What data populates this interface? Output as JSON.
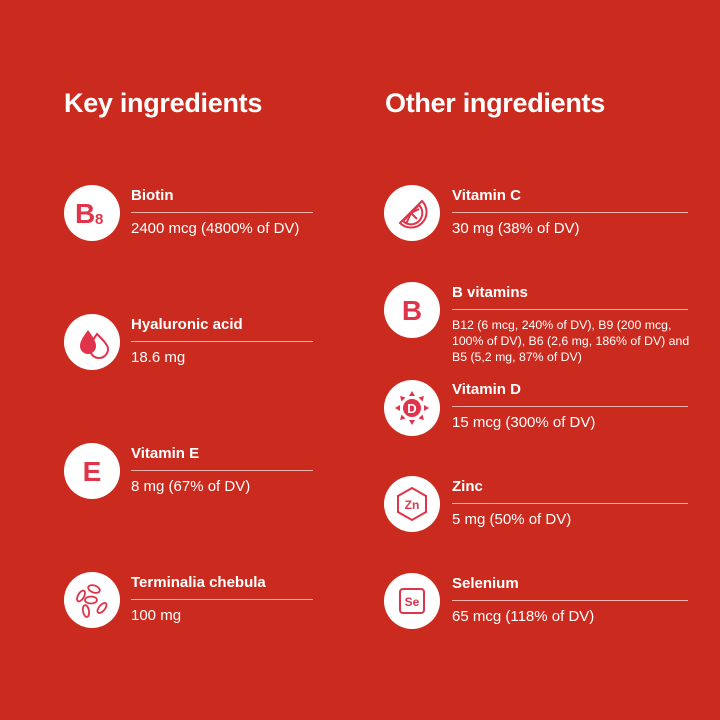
{
  "headings": {
    "key": "Key ingredients",
    "other": "Other ingredients"
  },
  "colors": {
    "background": "#cb2b1e",
    "icon": "#e0344a",
    "text": "#ffffff"
  },
  "key_ingredients": [
    {
      "name": "Biotin",
      "value": "2400 mcg (4800% of DV)",
      "icon": "b8-icon",
      "icon_text": "B",
      "icon_sub": "8"
    },
    {
      "name": "Hyaluronic acid",
      "value": "18.6 mg",
      "icon": "droplets-icon"
    },
    {
      "name": "Vitamin E",
      "value": "8 mg (67% of DV)",
      "icon": "e-letter-icon",
      "icon_text": "E"
    },
    {
      "name": "Terminalia chebula",
      "value": "100 mg",
      "icon": "seeds-icon"
    }
  ],
  "other_ingredients": [
    {
      "name": "Vitamin C",
      "value": "30 mg (38% of DV)",
      "icon": "citrus-slice-icon"
    },
    {
      "name": "B vitamins",
      "value": "B12 (6 mcg, 240% of DV), B9 (200 mcg, 100% of DV), B6 (2,6 mg, 186% of DV) and B5 (5,2 mg, 87% of DV)",
      "icon": "b-letter-icon",
      "icon_text": "B"
    },
    {
      "name": "Vitamin D",
      "value": "15 mcg (300% of DV)",
      "icon": "sun-d-icon",
      "icon_text": "D"
    },
    {
      "name": "Zinc",
      "value": "5 mg (50% of DV)",
      "icon": "zinc-hexagon-icon",
      "icon_text": "Zn"
    },
    {
      "name": "Selenium",
      "value": "65 mcg (118% of DV)",
      "icon": "selenium-square-icon",
      "icon_text": "Se"
    }
  ]
}
